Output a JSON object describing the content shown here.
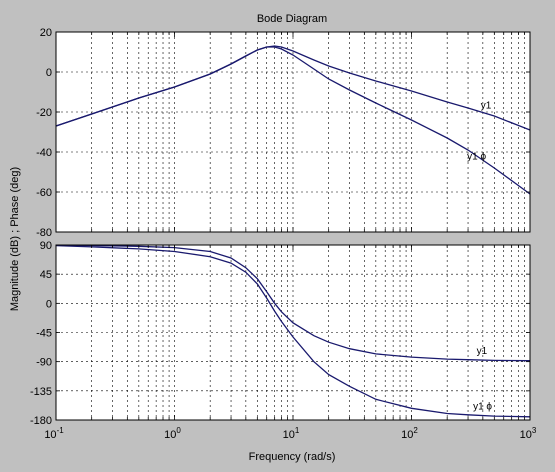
{
  "figure": {
    "title": "Bode Diagram",
    "xlabel": "Frequency  (rad/s)",
    "ylabel": "Magnitude (dB) ; Phase (deg)",
    "background": "#c0c0c0",
    "axes_background": "#ffffff",
    "line_color": "#1a1a6e",
    "grid_color": "#000000"
  },
  "chart_data": [
    {
      "type": "line",
      "panel": "magnitude",
      "x_scale": "log",
      "xlim": [
        0.1,
        1000
      ],
      "ylim": [
        -80,
        20
      ],
      "yticks": [
        20,
        0,
        -20,
        -40,
        -60,
        -80
      ],
      "x_exponents": [
        "-1",
        "0",
        "1",
        "2",
        "3"
      ],
      "grid": true,
      "series": [
        {
          "name": "y1",
          "x": [
            0.1,
            0.2,
            0.5,
            1,
            2,
            3,
            4,
            5,
            6,
            7,
            8,
            10,
            15,
            20,
            30,
            50,
            100,
            200,
            300,
            500,
            1000
          ],
          "y": [
            -27,
            -21,
            -13,
            -7.5,
            -1,
            4,
            8,
            11,
            12.5,
            13,
            12.5,
            10.5,
            6,
            3,
            -0.5,
            -4.5,
            -9.5,
            -15,
            -18,
            -22,
            -29
          ]
        },
        {
          "name": "y1 ϕ",
          "x": [
            0.1,
            0.2,
            0.5,
            1,
            2,
            3,
            4,
            5,
            6,
            7,
            8,
            10,
            15,
            20,
            30,
            50,
            100,
            200,
            300,
            500,
            1000
          ],
          "y": [
            -27,
            -21,
            -13,
            -7.5,
            -1,
            4,
            8,
            11,
            12.5,
            12.5,
            11.5,
            8.5,
            1.5,
            -3.5,
            -9,
            -15.5,
            -24,
            -33,
            -39,
            -48,
            -61
          ]
        }
      ]
    },
    {
      "type": "line",
      "panel": "phase",
      "x_scale": "log",
      "xlim": [
        0.1,
        1000
      ],
      "ylim": [
        -180,
        90
      ],
      "yticks": [
        90,
        45,
        0,
        -45,
        -90,
        -135,
        -180
      ],
      "x_exponents": [
        "-1",
        "0",
        "1",
        "2",
        "3"
      ],
      "grid": true,
      "series": [
        {
          "name": "y1",
          "x": [
            0.1,
            0.2,
            0.5,
            1,
            2,
            3,
            4,
            5,
            6,
            7,
            8,
            10,
            15,
            20,
            30,
            50,
            100,
            200,
            300,
            500,
            1000
          ],
          "y": [
            89.5,
            89,
            88,
            86,
            80,
            70,
            55,
            38,
            18,
            0,
            -13,
            -30,
            -50,
            -60,
            -70,
            -78,
            -83,
            -86,
            -87,
            -88,
            -88.5
          ]
        },
        {
          "name": "y1 ϕ",
          "x": [
            0.1,
            0.2,
            0.5,
            1,
            2,
            3,
            4,
            5,
            6,
            7,
            8,
            10,
            15,
            20,
            30,
            50,
            100,
            200,
            300,
            500,
            1000
          ],
          "y": [
            89,
            87,
            84,
            80,
            72,
            62,
            48,
            30,
            8,
            -12,
            -28,
            -52,
            -90,
            -110,
            -128,
            -148,
            -162,
            -170,
            -172,
            -174,
            -175
          ]
        }
      ]
    }
  ]
}
